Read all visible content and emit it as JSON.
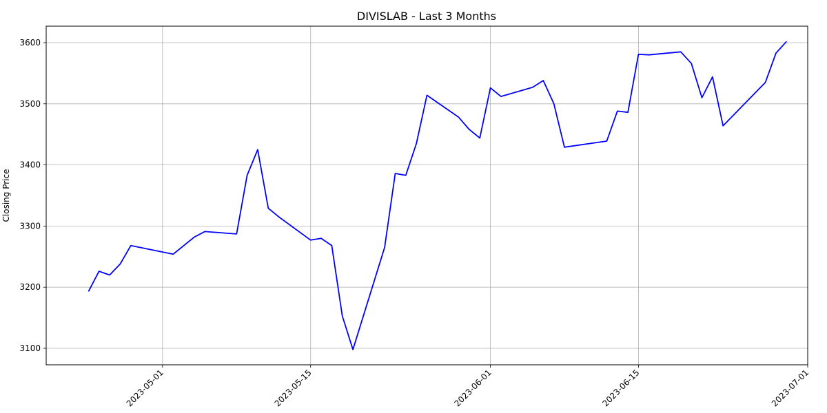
{
  "chart_data": {
    "type": "line",
    "title": "DIVISLAB - Last 3 Months",
    "xlabel": "",
    "ylabel": "Closing Price",
    "x_axis_type": "date",
    "xlim": [
      "2023-04-20",
      "2023-07-01"
    ],
    "ylim": [
      3073,
      3627
    ],
    "grid": true,
    "line_color": "#0000ff",
    "x_ticks": [
      "2023-05-01",
      "2023-05-15",
      "2023-06-01",
      "2023-06-15",
      "2023-07-01"
    ],
    "y_ticks": [
      3100,
      3200,
      3300,
      3400,
      3500,
      3600
    ],
    "series": [
      {
        "name": "",
        "points": [
          [
            "2023-04-24",
            3193
          ],
          [
            "2023-04-25",
            3226
          ],
          [
            "2023-04-26",
            3220
          ],
          [
            "2023-04-27",
            3238
          ],
          [
            "2023-04-28",
            3268
          ],
          [
            "2023-05-02",
            3254
          ],
          [
            "2023-05-04",
            3282
          ],
          [
            "2023-05-05",
            3291
          ],
          [
            "2023-05-08",
            3287
          ],
          [
            "2023-05-09",
            3383
          ],
          [
            "2023-05-10",
            3425
          ],
          [
            "2023-05-11",
            3329
          ],
          [
            "2023-05-12",
            3315
          ],
          [
            "2023-05-15",
            3277
          ],
          [
            "2023-05-16",
            3280
          ],
          [
            "2023-05-17",
            3268
          ],
          [
            "2023-05-18",
            3153
          ],
          [
            "2023-05-19",
            3098
          ],
          [
            "2023-05-22",
            3265
          ],
          [
            "2023-05-23",
            3386
          ],
          [
            "2023-05-24",
            3383
          ],
          [
            "2023-05-25",
            3435
          ],
          [
            "2023-05-26",
            3514
          ],
          [
            "2023-05-29",
            3478
          ],
          [
            "2023-05-30",
            3458
          ],
          [
            "2023-05-31",
            3444
          ],
          [
            "2023-06-01",
            3526
          ],
          [
            "2023-06-02",
            3512
          ],
          [
            "2023-06-05",
            3527
          ],
          [
            "2023-06-06",
            3538
          ],
          [
            "2023-06-07",
            3500
          ],
          [
            "2023-06-08",
            3429
          ],
          [
            "2023-06-12",
            3439
          ],
          [
            "2023-06-13",
            3488
          ],
          [
            "2023-06-14",
            3486
          ],
          [
            "2023-06-15",
            3581
          ],
          [
            "2023-06-16",
            3580
          ],
          [
            "2023-06-19",
            3585
          ],
          [
            "2023-06-20",
            3566
          ],
          [
            "2023-06-21",
            3510
          ],
          [
            "2023-06-22",
            3544
          ],
          [
            "2023-06-23",
            3464
          ],
          [
            "2023-06-27",
            3535
          ],
          [
            "2023-06-28",
            3583
          ],
          [
            "2023-06-29",
            3602
          ]
        ]
      }
    ]
  }
}
